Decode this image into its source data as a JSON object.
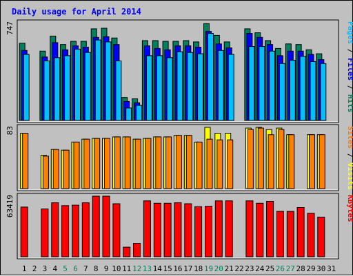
{
  "chart_data": {
    "type": "bar",
    "title": "Daily usage for April 2014",
    "categories": [
      "1",
      "2",
      "3",
      "4",
      "5",
      "6",
      "7",
      "8",
      "9",
      "10",
      "11",
      "12",
      "13",
      "14",
      "15",
      "16",
      "17",
      "18",
      "19",
      "20",
      "21",
      "22",
      "23",
      "24",
      "25",
      "26",
      "27",
      "28",
      "29",
      "30",
      "31"
    ],
    "weekend_days": [
      "5",
      "6",
      "12",
      "13",
      "19",
      "20",
      "26",
      "27"
    ],
    "colors": {
      "hits": "#00805C",
      "files": "#0000FF",
      "pages": "#00C0FF",
      "visits": "#FFFF00",
      "sites": "#FF8000",
      "kbytes": "#FF0000",
      "title": "#0000FF",
      "weekend_label": "#00805C",
      "background": "#C0C0C0"
    },
    "panels": [
      {
        "name": "hits-files-pages",
        "max_label": "747",
        "ymax": 747,
        "right_labels": [
          {
            "text": "Pages",
            "color": "#00C0FF"
          },
          {
            "text": " / ",
            "color": "#000000"
          },
          {
            "text": "Files",
            "color": "#0000FF"
          },
          {
            "text": " / ",
            "color": "#000000"
          },
          {
            "text": "Hits",
            "color": "#00805C"
          }
        ],
        "series": [
          {
            "name": "Hits",
            "color": "#00805C",
            "values": [
              590,
              0,
              530,
              645,
              580,
              605,
              605,
              700,
              705,
              630,
              175,
              165,
              610,
              610,
              605,
              605,
              610,
              600,
              740,
              650,
              600,
              0,
              700,
              670,
              610,
              550,
              585,
              580,
              540,
              510,
              0
            ]
          },
          {
            "name": "Files",
            "color": "#0000FF",
            "values": [
              535,
              0,
              485,
              595,
              540,
              570,
              560,
              635,
              640,
              580,
              145,
              135,
              570,
              550,
              540,
              570,
              570,
              560,
              680,
              585,
              555,
              0,
              665,
              635,
              580,
              495,
              530,
              530,
              505,
              465,
              0
            ]
          },
          {
            "name": "Pages",
            "color": "#00C0FF",
            "values": [
              505,
              0,
              455,
              480,
              495,
              545,
              520,
              615,
              600,
              455,
              95,
              115,
              495,
              495,
              480,
              525,
              520,
              510,
              665,
              535,
              505,
              0,
              565,
              565,
              530,
              435,
              460,
              490,
              450,
              435,
              0
            ]
          }
        ]
      },
      {
        "name": "visits-sites",
        "max_label": "83",
        "ymax": 83,
        "right_labels": [
          {
            "text": "Sites",
            "color": "#FF8000"
          },
          {
            "text": " / ",
            "color": "#000000"
          },
          {
            "text": "Visits",
            "color": "#FFFF00"
          }
        ],
        "series": [
          {
            "name": "Visits",
            "color": "#FFFF00",
            "values": [
              75,
              0,
              45,
              53,
              52,
              63,
              67,
              68,
              68,
              70,
              70,
              67,
              68,
              70,
              70,
              72,
              72,
              63,
              83,
              75,
              75,
              0,
              82,
              83,
              80,
              82,
              73,
              0,
              73,
              73,
              0
            ]
          },
          {
            "name": "Sites",
            "color": "#FF8000",
            "values": [
              75,
              0,
              44,
              53,
              52,
              63,
              67,
              68,
              68,
              70,
              70,
              67,
              68,
              70,
              70,
              72,
              72,
              63,
              67,
              66,
              66,
              0,
              80,
              82,
              73,
              80,
              73,
              0,
              73,
              73,
              0
            ]
          }
        ]
      },
      {
        "name": "kbytes",
        "max_label": "63419",
        "ymax": 63419,
        "right_labels": [
          {
            "text": "KBytes",
            "color": "#FF0000"
          }
        ],
        "series": [
          {
            "name": "KBytes",
            "color": "#FF0000",
            "values": [
              52000,
              0,
              50000,
              56500,
              53500,
              54000,
              56500,
              63419,
              63419,
              55500,
              10000,
              14000,
              58500,
              56000,
              56000,
              56500,
              55500,
              52500,
              53000,
              58500,
              58500,
              0,
              58500,
              56000,
              58000,
              47500,
              47500,
              51500,
              45500,
              41500,
              0
            ]
          }
        ]
      }
    ]
  }
}
